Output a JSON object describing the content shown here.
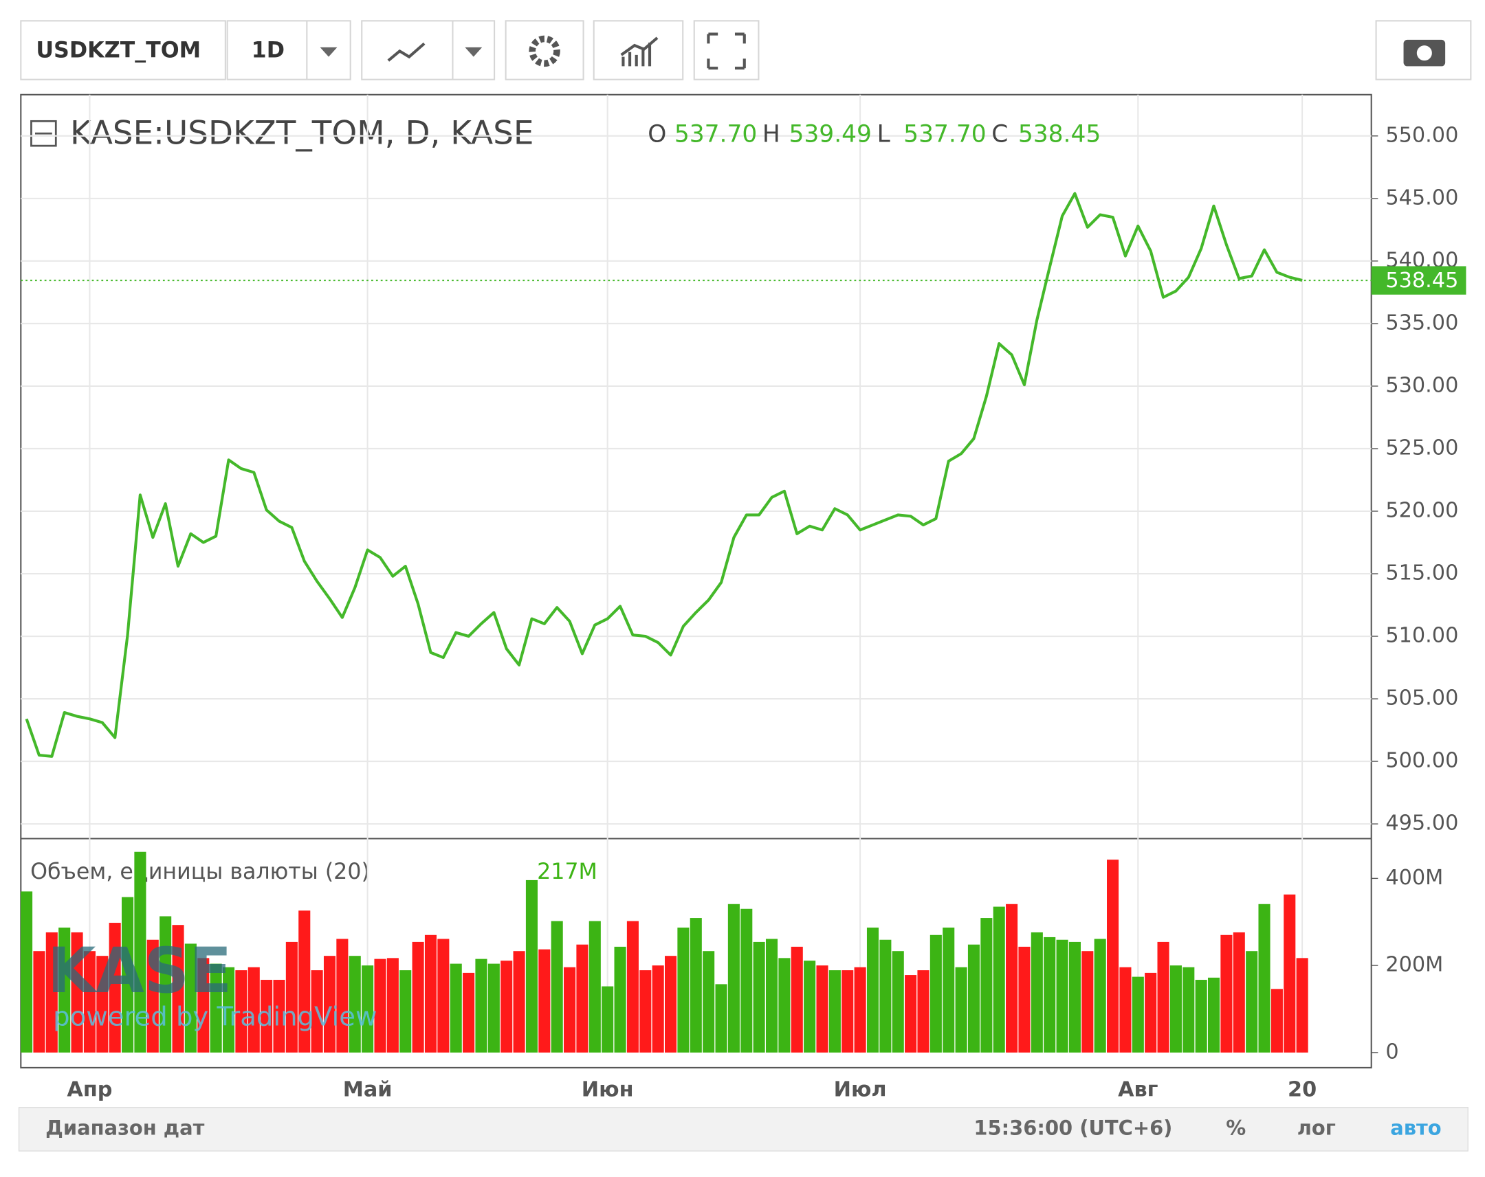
{
  "toolbar": {
    "symbol": "USDKZT_TOM",
    "interval": "1D"
  },
  "footer": {
    "range": "Диапазон дат",
    "time": "15:36:00 (UTC+6)",
    "percent": "%",
    "log": "лог",
    "auto": "авто"
  },
  "watermark": {
    "logo": "KASE",
    "powered": "powered by TradingView"
  },
  "chart_data": {
    "type": "line",
    "ohlc": [
      {
        "key": "O",
        "text": "537.70"
      },
      {
        "key": "H",
        "text": "539.49"
      },
      {
        "key": "L",
        "text": "537.70"
      },
      {
        "key": "C",
        "text": "538.45"
      }
    ],
    "last_price_label": "538.45",
    "volume_legend_value": "217M",
    "categories": [
      null,
      null,
      null,
      null,
      null,
      "Апр",
      null,
      null,
      null,
      null,
      null,
      null,
      null,
      null,
      null,
      null,
      null,
      null,
      null,
      null,
      null,
      null,
      null,
      null,
      null,
      null,
      null,
      "Май",
      null,
      null,
      null,
      null,
      null,
      null,
      null,
      null,
      null,
      null,
      null,
      null,
      null,
      null,
      null,
      null,
      null,
      null,
      "Июн",
      null,
      null,
      null,
      null,
      null,
      null,
      null,
      null,
      null,
      null,
      null,
      null,
      null,
      null,
      null,
      null,
      null,
      null,
      null,
      "Июл",
      null,
      null,
      null,
      null,
      null,
      null,
      null,
      null,
      null,
      null,
      null,
      null,
      null,
      null,
      null,
      null,
      null,
      null,
      null,
      null,
      null,
      "Авг",
      null,
      null,
      null,
      null,
      null,
      null,
      null,
      null,
      null,
      null,
      null,
      null,
      "20"
    ],
    "series": [
      {
        "name": "KASE:USDKZT_TOM, D, KASE",
        "color": "#44b82a",
        "values": [
          503.4,
          500.5,
          500.4,
          503.9,
          503.6,
          503.4,
          503.1,
          501.9,
          510.1,
          521.3,
          517.9,
          520.6,
          515.6,
          518.2,
          517.5,
          518.0,
          524.1,
          523.4,
          523.1,
          520.1,
          519.2,
          518.7,
          516.0,
          514.4,
          513.0,
          511.5,
          513.9,
          516.9,
          516.3,
          514.8,
          515.6,
          512.6,
          508.7,
          508.3,
          510.3,
          510.0,
          511.0,
          511.9,
          509.0,
          507.7,
          511.4,
          511.0,
          512.3,
          511.2,
          508.6,
          510.9,
          511.4,
          512.4,
          510.1,
          510.0,
          509.5,
          508.5,
          510.8,
          511.9,
          512.9,
          514.3,
          517.9,
          519.7,
          519.7,
          521.1,
          521.6,
          518.2,
          518.8,
          518.5,
          520.2,
          519.7,
          518.5,
          518.9,
          519.3,
          519.7,
          519.6,
          518.9,
          519.4,
          524.0,
          524.6,
          525.8,
          529.2,
          533.4,
          532.5,
          530.1,
          535.3,
          539.5,
          543.6,
          545.4,
          542.7,
          543.7,
          543.5,
          540.4,
          542.8,
          540.8,
          537.1,
          537.6,
          538.7,
          541.0,
          544.4,
          541.3,
          538.6,
          538.8,
          540.9,
          539.1,
          538.7,
          538.45
        ]
      },
      {
        "name": "Объем, единицы валюты (20)",
        "axis": "y2",
        "up_color": "#3cb414",
        "down_color": "#ff1a1a",
        "values": [
          370000000.0,
          233000000.0,
          276000000.0,
          287000000.0,
          276000000.0,
          233000000.0,
          222000000.0,
          298000000.0,
          357000000.0,
          461000000.0,
          259000000.0,
          313000000.0,
          293000000.0,
          250000000.0,
          217000000.0,
          204000000.0,
          196000000.0,
          189000000.0,
          196000000.0,
          167000000.0,
          167000000.0,
          254000000.0,
          326000000.0,
          189000000.0,
          222000000.0,
          261000000.0,
          222000000.0,
          200000000.0,
          215000000.0,
          217000000.0,
          189000000.0,
          254000000.0,
          270000000.0,
          261000000.0,
          204000000.0,
          183000000.0,
          215000000.0,
          204000000.0,
          211000000.0,
          233000000.0,
          396000000.0,
          237000000.0,
          302000000.0,
          196000000.0,
          248000000.0,
          302000000.0,
          152000000.0,
          243000000.0,
          302000000.0,
          189000000.0,
          200000000.0,
          222000000.0,
          287000000.0,
          309000000.0,
          233000000.0,
          157000000.0,
          341000000.0,
          330000000.0,
          254000000.0,
          261000000.0,
          217000000.0,
          243000000.0,
          211000000.0,
          200000000.0,
          189000000.0,
          189000000.0,
          196000000.0,
          287000000.0,
          259000000.0,
          233000000.0,
          178000000.0,
          189000000.0,
          270000000.0,
          287000000.0,
          196000000.0,
          248000000.0,
          309000000.0,
          335000000.0,
          341000000.0,
          243000000.0,
          276000000.0,
          265000000.0,
          259000000.0,
          254000000.0,
          233000000.0,
          261000000.0,
          443000000.0,
          196000000.0,
          174000000.0,
          183000000.0,
          254000000.0,
          200000000.0,
          196000000.0,
          167000000.0,
          172000000.0,
          270000000.0,
          276000000.0,
          233000000.0,
          341000000.0,
          146000000.0,
          363000000.0,
          217000000.0
        ]
      }
    ],
    "ylim": [
      493.9,
      553.3
    ],
    "yticks": [
      {
        "value": 495,
        "label": "495.00"
      },
      {
        "value": 500,
        "label": "500.00"
      },
      {
        "value": 505,
        "label": "505.00"
      },
      {
        "value": 510,
        "label": "510.00"
      },
      {
        "value": 515,
        "label": "515.00"
      },
      {
        "value": 520,
        "label": "520.00"
      },
      {
        "value": 525,
        "label": "525.00"
      },
      {
        "value": 530,
        "label": "530.00"
      },
      {
        "value": 535,
        "label": "535.00"
      },
      {
        "value": 540,
        "label": "540.00"
      },
      {
        "value": 545,
        "label": "545.00"
      },
      {
        "value": 550,
        "label": "550.00"
      }
    ],
    "y2lim": [
      0,
      487000000.0
    ],
    "y2ticks": [
      0,
      {
        "value": 200000000.0,
        "label": "200M"
      },
      {
        "value": 400000000.0,
        "label": "400M"
      }
    ],
    "grid": true
  }
}
